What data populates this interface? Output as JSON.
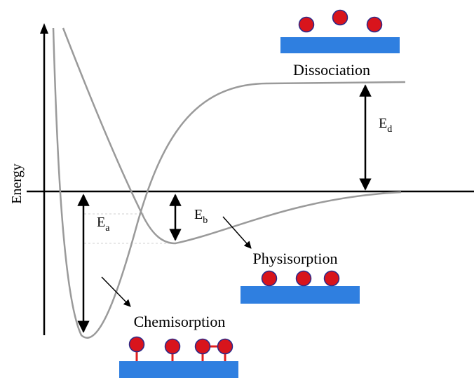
{
  "diagram": {
    "axis_label": "Energy",
    "labels": {
      "dissociation": "Dissociation",
      "physisorption": "Physisorption",
      "chemisorption": "Chemisorption"
    },
    "energies": {
      "ed": {
        "main": "E",
        "sub": "d"
      },
      "ea": {
        "main": "E",
        "sub": "a"
      },
      "eb": {
        "main": "E",
        "sub": "b"
      }
    },
    "colors": {
      "curve": "#9a9a9a",
      "axis": "#000000",
      "surface": "#2f7fe0",
      "atom_fill": "#d8141c",
      "atom_stroke": "#2a2a8a",
      "bond": "#e02020"
    }
  }
}
